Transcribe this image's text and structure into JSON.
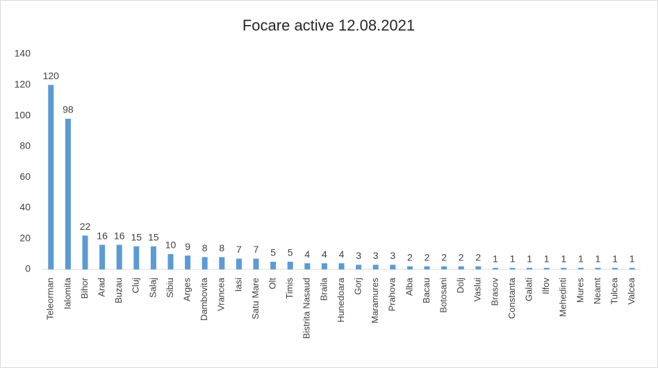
{
  "chart_data": {
    "type": "bar",
    "title": "Focare active 12.08.2021",
    "categories": [
      "Teleorman",
      "Ialomita",
      "Bihor",
      "Arad",
      "Buzau",
      "Cluj",
      "Salaj",
      "Sibiu",
      "Arges",
      "Dambovita",
      "Vrancea",
      "Iasi",
      "Satu Mare",
      "Olt",
      "Timis",
      "Bistrita Nasaud",
      "Braila",
      "Hunedoara",
      "Gorj",
      "Maramures",
      "Prahova",
      "Alba",
      "Bacau",
      "Botosani",
      "Dolj",
      "Vaslui",
      "Brasov",
      "Constanta",
      "Galati",
      "Ilfov",
      "Mehedinti",
      "Mures",
      "Neamt",
      "Tulcea",
      "Valcea"
    ],
    "values": [
      120,
      98,
      22,
      16,
      16,
      15,
      15,
      10,
      9,
      8,
      8,
      7,
      7,
      5,
      5,
      4,
      4,
      4,
      3,
      3,
      3,
      2,
      2,
      2,
      2,
      2,
      1,
      1,
      1,
      1,
      1,
      1,
      1,
      1,
      1
    ],
    "color": "#5b9bd5",
    "ylim": [
      0,
      140
    ],
    "yticks": [
      0,
      20,
      40,
      60,
      80,
      100,
      120,
      140
    ],
    "grid": false,
    "data_labels": true
  }
}
